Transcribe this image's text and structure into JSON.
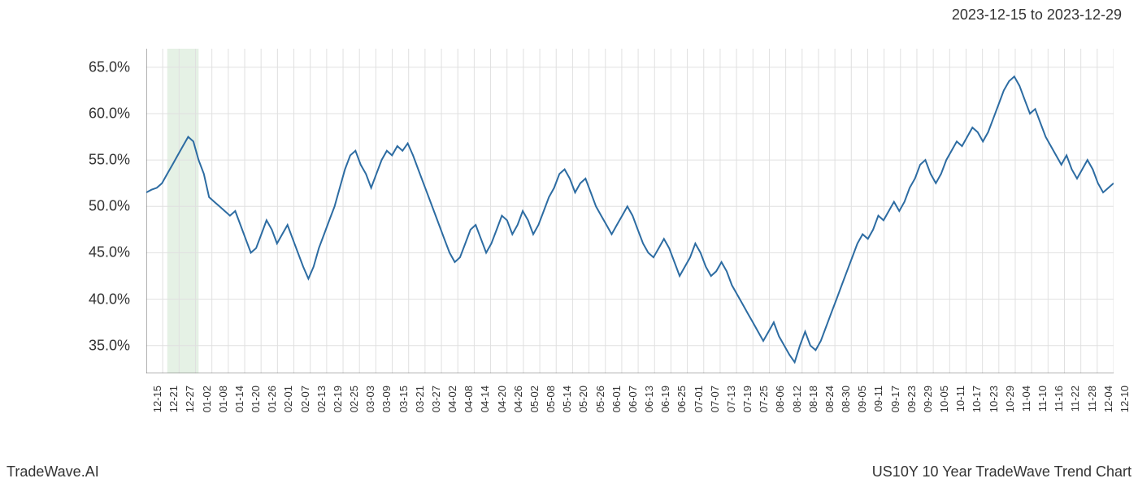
{
  "header": {
    "date_range": "2023-12-15 to 2023-12-29"
  },
  "footer": {
    "left": "TradeWave.AI",
    "right": "US10Y 10 Year TradeWave Trend Chart"
  },
  "chart": {
    "type": "line",
    "background_color": "#ffffff",
    "grid_color": "#e0e0e0",
    "axis_color": "#666666",
    "line_color": "#2d6ca2",
    "line_width": 2,
    "highlight_fill": "#d4e8d4",
    "highlight_opacity": 0.6,
    "highlight_range": [
      4,
      10
    ],
    "font_size_axis": 18,
    "font_size_xlabel": 13,
    "ylim": [
      32,
      67
    ],
    "yticks": [
      35,
      40,
      45,
      50,
      55,
      60,
      65
    ],
    "ytick_labels": [
      "35.0%",
      "40.0%",
      "45.0%",
      "50.0%",
      "55.0%",
      "60.0%",
      "65.0%"
    ],
    "xticks": [
      "12-15",
      "12-21",
      "12-27",
      "01-02",
      "01-08",
      "01-14",
      "01-20",
      "01-26",
      "02-01",
      "02-07",
      "02-13",
      "02-19",
      "02-25",
      "03-03",
      "03-09",
      "03-15",
      "03-21",
      "03-27",
      "04-02",
      "04-08",
      "04-14",
      "04-20",
      "04-26",
      "05-02",
      "05-08",
      "05-14",
      "05-20",
      "05-26",
      "06-01",
      "06-07",
      "06-13",
      "06-19",
      "06-25",
      "07-01",
      "07-07",
      "07-13",
      "07-19",
      "07-25",
      "08-06",
      "08-12",
      "08-18",
      "08-24",
      "08-30",
      "09-05",
      "09-11",
      "09-17",
      "09-23",
      "09-29",
      "10-05",
      "10-11",
      "10-17",
      "10-23",
      "10-29",
      "11-04",
      "11-10",
      "11-16",
      "11-22",
      "11-28",
      "12-04",
      "12-10"
    ],
    "series": {
      "values": [
        51.5,
        51.8,
        52.0,
        52.5,
        53.5,
        54.5,
        55.5,
        56.5,
        57.5,
        57.0,
        55.0,
        53.5,
        51.0,
        50.5,
        50.0,
        49.5,
        49.0,
        49.5,
        48.0,
        46.5,
        45.0,
        45.5,
        47.0,
        48.5,
        47.5,
        46.0,
        47.0,
        48.0,
        46.5,
        45.0,
        43.5,
        42.2,
        43.5,
        45.5,
        47.0,
        48.5,
        50.0,
        52.0,
        54.0,
        55.5,
        56.0,
        54.5,
        53.5,
        52.0,
        53.5,
        55.0,
        56.0,
        55.5,
        56.5,
        56.0,
        56.8,
        55.5,
        54.0,
        52.5,
        51.0,
        49.5,
        48.0,
        46.5,
        45.0,
        44.0,
        44.5,
        46.0,
        47.5,
        48.0,
        46.5,
        45.0,
        46.0,
        47.5,
        49.0,
        48.5,
        47.0,
        48.0,
        49.5,
        48.5,
        47.0,
        48.0,
        49.5,
        51.0,
        52.0,
        53.5,
        54.0,
        53.0,
        51.5,
        52.5,
        53.0,
        51.5,
        50.0,
        49.0,
        48.0,
        47.0,
        48.0,
        49.0,
        50.0,
        49.0,
        47.5,
        46.0,
        45.0,
        44.5,
        45.5,
        46.5,
        45.5,
        44.0,
        42.5,
        43.5,
        44.5,
        46.0,
        45.0,
        43.5,
        42.5,
        43.0,
        44.0,
        43.0,
        41.5,
        40.5,
        39.5,
        38.5,
        37.5,
        36.5,
        35.5,
        36.5,
        37.5,
        36.0,
        35.0,
        34.0,
        33.2,
        35.0,
        36.5,
        35.0,
        34.5,
        35.5,
        37.0,
        38.5,
        40.0,
        41.5,
        43.0,
        44.5,
        46.0,
        47.0,
        46.5,
        47.5,
        49.0,
        48.5,
        49.5,
        50.5,
        49.5,
        50.5,
        52.0,
        53.0,
        54.5,
        55.0,
        53.5,
        52.5,
        53.5,
        55.0,
        56.0,
        57.0,
        56.5,
        57.5,
        58.5,
        58.0,
        57.0,
        58.0,
        59.5,
        61.0,
        62.5,
        63.5,
        64.0,
        63.0,
        61.5,
        60.0,
        60.5,
        59.0,
        57.5,
        56.5,
        55.5,
        54.5,
        55.5,
        54.0,
        53.0,
        54.0,
        55.0,
        54.0,
        52.5,
        51.5,
        52.0,
        52.5
      ]
    }
  }
}
